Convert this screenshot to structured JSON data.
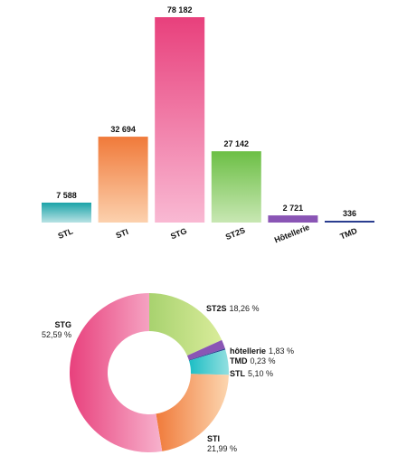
{
  "chart_data": [
    {
      "type": "bar",
      "categories": [
        "STL",
        "STI",
        "STG",
        "ST2S",
        "Hôtellerie",
        "TMD"
      ],
      "values": [
        7588,
        32694,
        78182,
        27142,
        2721,
        336
      ],
      "value_labels": [
        "7 588",
        "32 694",
        "78 182",
        "27 142",
        "2 721",
        "336"
      ],
      "ylim": [
        0,
        78182
      ],
      "grid": false,
      "colors": [
        [
          "#1aa3a8",
          "#b8e2e4"
        ],
        [
          "#f07a3a",
          "#fcd1ae"
        ],
        [
          "#e8407c",
          "#f9b9d3"
        ],
        [
          "#6cbf45",
          "#c8e7b3"
        ],
        [
          "#8a55b5",
          "#8a55b5"
        ],
        [
          "#2a3d8f",
          "#2a3d8f"
        ]
      ]
    },
    {
      "type": "pie",
      "donut": true,
      "slices": [
        {
          "name": "ST2S",
          "value": 18.26,
          "pct_label": "18,26 %",
          "color": [
            "#a8d26f",
            "#d9ec9a"
          ]
        },
        {
          "name": "hôtellerie",
          "value": 1.83,
          "pct_label": "1,83 %",
          "color": [
            "#8a55b5",
            "#8a55b5"
          ]
        },
        {
          "name": "TMD",
          "value": 0.23,
          "pct_label": "0,23 %",
          "color": [
            "#2a3d8f",
            "#2a3d8f"
          ]
        },
        {
          "name": "STL",
          "value": 5.1,
          "pct_label": "5,10 %",
          "color": [
            "#1bbec4",
            "#93dfe0"
          ]
        },
        {
          "name": "STI",
          "value": 21.99,
          "pct_label": "21,99 %",
          "color": [
            "#f07a3a",
            "#fcd6b0"
          ]
        },
        {
          "name": "STG",
          "value": 52.59,
          "pct_label": "52,59 %",
          "color": [
            "#e8407c",
            "#f7b2cd"
          ]
        }
      ]
    }
  ]
}
